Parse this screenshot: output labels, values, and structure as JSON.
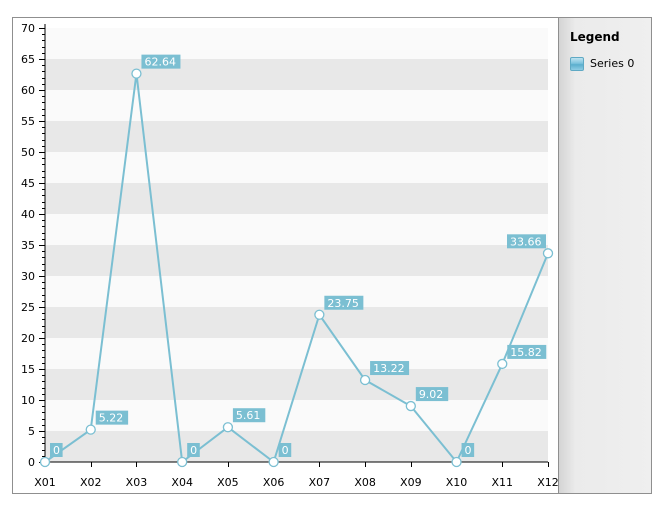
{
  "chart_data": {
    "type": "line",
    "categories": [
      "X01",
      "X02",
      "X03",
      "X04",
      "X05",
      "X06",
      "X07",
      "X08",
      "X09",
      "X10",
      "X11",
      "X12"
    ],
    "series": [
      {
        "name": "Series 0",
        "values": [
          0,
          5.22,
          62.64,
          0,
          5.61,
          0,
          23.75,
          13.22,
          9.02,
          0,
          15.82,
          33.66
        ],
        "labels": [
          "0",
          "5.22",
          "62.64",
          "0",
          "5.61",
          "0",
          "23.75",
          "13.22",
          "9.02",
          "0",
          "15.82",
          "33.66"
        ],
        "color": "#7bbfd2"
      }
    ],
    "ylim": [
      0,
      70
    ],
    "ymajor": 5,
    "yminor": 1,
    "yticks": [
      "0",
      "5",
      "10",
      "15",
      "20",
      "25",
      "30",
      "35",
      "40",
      "45",
      "50",
      "55",
      "60",
      "65",
      "70"
    ],
    "grid": "alternating horizontal bands",
    "legend_position": "right",
    "band_colors": [
      "#e8e8e8",
      "#fafafa"
    ],
    "label_bg": "#7bbfd2"
  },
  "legend": {
    "title": "Legend",
    "items": [
      {
        "label": "Series 0"
      }
    ]
  }
}
